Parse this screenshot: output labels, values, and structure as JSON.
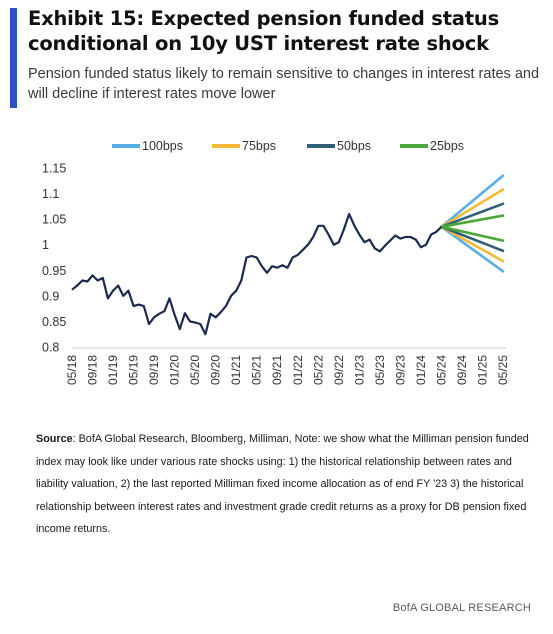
{
  "header": {
    "title": "Exhibit 15: Expected pension funded status conditional on 10y UST interest rate shock",
    "subtitle": "Pension funded status likely to remain sensitive to changes in interest rates and will decline if interest rates move lower"
  },
  "source": {
    "label": "Source",
    "text": ": BofA Global Research, Bloomberg, Milliman, Note: we show what the Milliman pension funded index may look like under various rate shocks using: 1) the historical relationship between rates and liability valuation, 2) the last reported Milliman fixed income allocation as of end FY '23 3) the historical relationship between interest rates and investment grade credit returns as a proxy for DB pension fixed income returns."
  },
  "footer": {
    "brand": "BofA GLOBAL RESEARCH"
  },
  "chart_data": {
    "type": "line",
    "title": "",
    "xlabel": "",
    "ylabel": "",
    "ylim": [
      0.8,
      1.15
    ],
    "yticks": [
      "1.15",
      "1.1",
      "1.05",
      "1",
      "0.95",
      "0.9",
      "0.85",
      "0.8"
    ],
    "x_range": [
      "2018-05",
      "2025-05"
    ],
    "xticks": [
      "05/18",
      "09/18",
      "01/19",
      "05/19",
      "09/19",
      "01/20",
      "05/20",
      "09/20",
      "01/21",
      "05/21",
      "09/21",
      "01/22",
      "05/22",
      "09/22",
      "01/23",
      "05/23",
      "09/23",
      "01/24",
      "05/24",
      "09/24",
      "01/25",
      "05/25"
    ],
    "grid": false,
    "legend_position": "top",
    "colors": {
      "history": "#1b2a4e",
      "100bps": "#5aaee6",
      "75bps": "#f5b935",
      "50bps": "#2f5f7a",
      "25bps": "#4aa83a"
    },
    "history": {
      "name": "",
      "x": [
        "2018-05",
        "2018-06",
        "2018-07",
        "2018-08",
        "2018-09",
        "2018-10",
        "2018-11",
        "2018-12",
        "2019-01",
        "2019-02",
        "2019-03",
        "2019-04",
        "2019-05",
        "2019-06",
        "2019-07",
        "2019-08",
        "2019-09",
        "2019-10",
        "2019-11",
        "2019-12",
        "2020-01",
        "2020-02",
        "2020-03",
        "2020-04",
        "2020-05",
        "2020-06",
        "2020-07",
        "2020-08",
        "2020-09",
        "2020-10",
        "2020-11",
        "2020-12",
        "2021-01",
        "2021-02",
        "2021-03",
        "2021-04",
        "2021-05",
        "2021-06",
        "2021-07",
        "2021-08",
        "2021-09",
        "2021-10",
        "2021-11",
        "2021-12",
        "2022-01",
        "2022-02",
        "2022-03",
        "2022-04",
        "2022-05",
        "2022-06",
        "2022-07",
        "2022-08",
        "2022-09",
        "2022-10",
        "2022-11",
        "2022-12",
        "2023-01",
        "2023-02",
        "2023-03",
        "2023-04",
        "2023-05",
        "2023-06",
        "2023-07",
        "2023-08",
        "2023-09",
        "2023-10",
        "2023-11",
        "2023-12",
        "2024-01",
        "2024-02",
        "2024-03",
        "2024-04",
        "2024-05"
      ],
      "y": [
        0.912,
        0.92,
        0.93,
        0.928,
        0.94,
        0.93,
        0.935,
        0.895,
        0.91,
        0.92,
        0.9,
        0.91,
        0.88,
        0.883,
        0.88,
        0.845,
        0.858,
        0.865,
        0.87,
        0.895,
        0.863,
        0.835,
        0.866,
        0.85,
        0.848,
        0.845,
        0.825,
        0.865,
        0.858,
        0.868,
        0.88,
        0.9,
        0.91,
        0.93,
        0.975,
        0.978,
        0.975,
        0.958,
        0.945,
        0.958,
        0.955,
        0.96,
        0.955,
        0.975,
        0.98,
        0.99,
        1.0,
        1.015,
        1.037,
        1.037,
        1.02,
        1.0,
        1.005,
        1.03,
        1.06,
        1.038,
        1.02,
        1.005,
        1.01,
        0.993,
        0.987,
        0.998,
        1.008,
        1.018,
        1.012,
        1.015,
        1.015,
        1.01,
        0.995,
        1.0,
        1.02,
        1.025,
        1.035
      ]
    },
    "series": [
      {
        "name": "100bps",
        "x": [
          "2024-05",
          "2025-05"
        ],
        "upper": [
          1.035,
          1.135
        ],
        "lower": [
          1.035,
          0.948
        ]
      },
      {
        "name": "75bps",
        "x": [
          "2024-05",
          "2025-05"
        ],
        "upper": [
          1.035,
          1.108
        ],
        "lower": [
          1.035,
          0.968
        ]
      },
      {
        "name": "50bps",
        "x": [
          "2024-05",
          "2025-05"
        ],
        "upper": [
          1.035,
          1.08
        ],
        "lower": [
          1.035,
          0.988
        ]
      },
      {
        "name": "25bps",
        "x": [
          "2024-05",
          "2025-05"
        ],
        "upper": [
          1.035,
          1.057
        ],
        "lower": [
          1.035,
          1.008
        ]
      }
    ]
  }
}
